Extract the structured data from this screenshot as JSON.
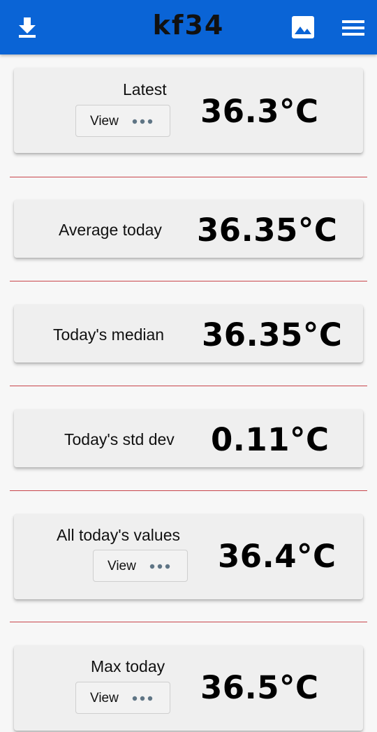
{
  "header": {
    "title": "kf34",
    "download_icon": "download-icon",
    "image_icon": "image-icon",
    "menu_icon": "menu-icon"
  },
  "colors": {
    "appbar": "#0a64d6",
    "divider": "#c8454b",
    "card": "#efefef"
  },
  "cards": [
    {
      "label": "Latest",
      "value": "36.3°C",
      "button": "View"
    },
    {
      "label": "Average today",
      "value": "36.35°C"
    },
    {
      "label": "Today's median",
      "value": "36.35°C"
    },
    {
      "label": "Today's std dev",
      "value": "0.11°C"
    },
    {
      "label": "All today's values",
      "value": "36.4°C",
      "button": "View"
    },
    {
      "label": "Max today",
      "value": "36.5°C",
      "button": "View"
    }
  ]
}
